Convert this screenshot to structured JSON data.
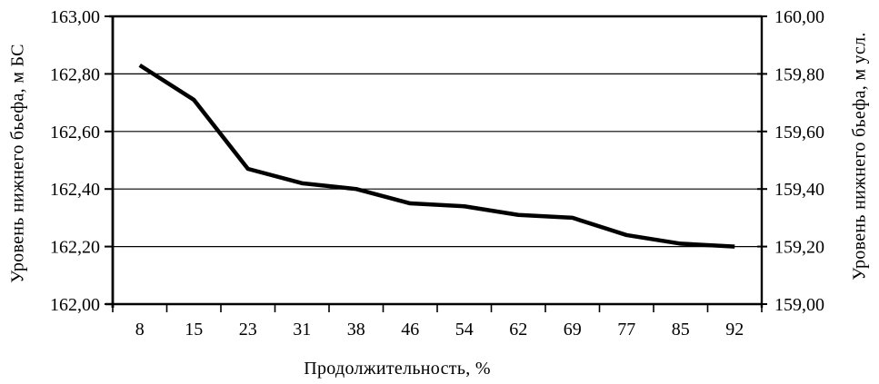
{
  "chart_data": {
    "type": "line",
    "title": "",
    "xlabel": "Продолжительность, %",
    "ylabel_left": "Уровень нижнего бьефа, м БС",
    "ylabel_right": "Уровень нижнего бьефа, м усл.",
    "categories": [
      "8",
      "15",
      "23",
      "31",
      "38",
      "46",
      "54",
      "62",
      "69",
      "77",
      "85",
      "92"
    ],
    "values": [
      162.83,
      162.71,
      162.47,
      162.42,
      162.4,
      162.35,
      162.34,
      162.31,
      162.3,
      162.24,
      162.21,
      162.2
    ],
    "y_axis_left": {
      "min": 162.0,
      "max": 163.0,
      "step": 0.2,
      "tick_labels": [
        "163,00",
        "162,80",
        "162,60",
        "162,40",
        "162,20",
        "162,00"
      ]
    },
    "y_axis_right": {
      "min": 159.0,
      "max": 160.0,
      "step": 0.2,
      "tick_labels": [
        "160,00",
        "159,80",
        "159,60",
        "159,40",
        "159,20",
        "159,00"
      ]
    },
    "grid": "horizontal",
    "legend": "none",
    "line_color": "#000000",
    "axis_color": "#000000",
    "background": "#ffffff"
  }
}
